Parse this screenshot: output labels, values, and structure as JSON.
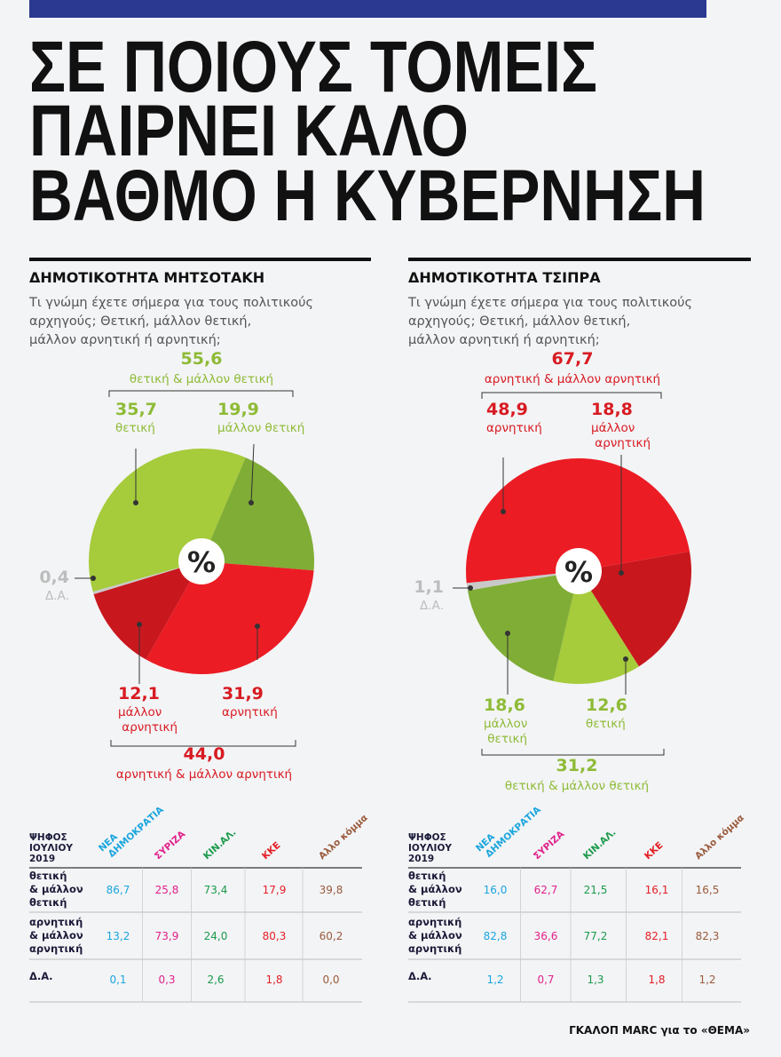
{
  "title_lines": [
    "ΣΕ ΠΟΙΟΥΣ ΤΟΜΕΙΣ",
    "ΠΑΙΡΝΕΙ ΚΑΛΟ",
    "ΒΑΘΜΟ Η ΚΥΒΕΡΝΗΣΗ"
  ],
  "chart_data": [
    {
      "type": "pie",
      "title": "ΔΗΜΟΤΙΚΟΤΗΤΑ ΜΗΤΣΟΤΑΚΗ",
      "subtitle": [
        "Τι γνώμη έχετε σήμερα για τους πολιτικούς",
        "αρχηγούς; Θετική, μάλλον θετική,",
        "μάλλον αρνητική ή αρνητική;"
      ],
      "center_label": "%",
      "categories": [
        "μάλλον θετική",
        "αρνητική",
        "μάλλον αρνητική",
        "Δ.Α.",
        "θετική"
      ],
      "values": [
        19.9,
        31.9,
        12.1,
        0.4,
        35.7
      ],
      "value_labels": [
        "19,9",
        "31,9",
        "12,1",
        "0,4",
        "35,7"
      ],
      "colors": [
        "#80ad35",
        "#ec1c24",
        "#c9171e",
        "#c9c9c9",
        "#a6cb3b"
      ],
      "groups": [
        {
          "value_label": "55,6",
          "label": "θετική & μάλλον θετική"
        },
        {
          "value_label": "44,0",
          "label": "αρνητική & μάλλον αρνητική"
        }
      ]
    },
    {
      "type": "pie",
      "title": "ΔΗΜΟΤΙΚΟΤΗΤΑ ΤΣΙΠΡΑ",
      "subtitle": [
        "Τι γνώμη έχετε σήμερα για τους πολιτικούς",
        "αρχηγούς; Θετική, μάλλον θετική,",
        "μάλλον αρνητική ή αρνητική;"
      ],
      "center_label": "%",
      "categories": [
        "μάλλον αρνητική",
        "θετική",
        "μάλλον θετική",
        "Δ.Α.",
        "αρνητική"
      ],
      "values": [
        18.8,
        12.6,
        18.6,
        1.1,
        48.9
      ],
      "value_labels": [
        "18,8",
        "12,6",
        "18,6",
        "1,1",
        "48,9"
      ],
      "colors": [
        "#c9171e",
        "#a6cb3b",
        "#80ad35",
        "#c9c9c9",
        "#ec1c24"
      ],
      "groups": [
        {
          "value_label": "67,7",
          "label": "αρνητική & μάλλον αρνητική"
        },
        {
          "value_label": "31,2",
          "label": "θετική & μάλλον θετική"
        }
      ]
    }
  ],
  "tables": [
    {
      "header_label": [
        "ΨΗΦΟΣ",
        "ΙΟΥΛΙΟΥ",
        "2019"
      ],
      "columns": [
        "ΝΕΑ ΔΗΜΟΚΡΑΤΙΑ",
        "ΣΥΡΙΖΑ",
        "ΚΙΝ.ΑΛ.",
        "ΚΚΕ",
        "Αλλο κόμμα"
      ],
      "rows": [
        {
          "label": [
            "θετική",
            "& μάλλον",
            "θετική"
          ],
          "cells": [
            "86,7",
            "25,8",
            "73,4",
            "17,9",
            "39,8"
          ]
        },
        {
          "label": [
            "αρνητική",
            "& μάλλον",
            "αρνητική"
          ],
          "cells": [
            "13,2",
            "73,9",
            "24,0",
            "80,3",
            "60,2"
          ]
        },
        {
          "label": [
            "Δ.Α."
          ],
          "cells": [
            "0,1",
            "0,3",
            "2,6",
            "1,8",
            "0,0"
          ]
        }
      ]
    },
    {
      "header_label": [
        "ΨΗΦΟΣ",
        "ΙΟΥΛΙΟΥ",
        "2019"
      ],
      "columns": [
        "ΝΕΑ ΔΗΜΟΚΡΑΤΙΑ",
        "ΣΥΡΙΖΑ",
        "ΚΙΝ.ΑΛ.",
        "ΚΚΕ",
        "Αλλο κόμμα"
      ],
      "rows": [
        {
          "label": [
            "θετική",
            "& μάλλον",
            "θετική"
          ],
          "cells": [
            "16,0",
            "62,7",
            "21,5",
            "16,1",
            "16,5"
          ]
        },
        {
          "label": [
            "αρνητική",
            "& μάλλον",
            "αρνητική"
          ],
          "cells": [
            "82,8",
            "36,6",
            "77,2",
            "82,1",
            "82,3"
          ]
        },
        {
          "label": [
            "Δ.Α."
          ],
          "cells": [
            "1,2",
            "0,7",
            "1,3",
            "1,8",
            "1,2"
          ]
        }
      ]
    }
  ],
  "source": "ΓΚΑΛΟΠ MARC για το «ΘΕΜΑ»"
}
